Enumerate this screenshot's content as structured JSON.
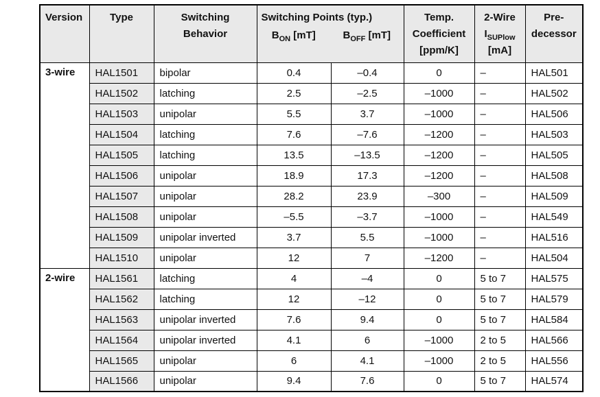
{
  "table": {
    "header": {
      "version_label": "Version",
      "type_label": "Type",
      "behavior_line1": "Switching",
      "behavior_line2": "Behavior",
      "points_label": "Switching Points (typ.)",
      "bon_base": "B",
      "bon_sub": "ON",
      "bon_unit": "[mT]",
      "boff_base": "B",
      "boff_sub": "OFF",
      "boff_unit": "[mT]",
      "temp_line1": "Temp.",
      "temp_line2": "Coefficient",
      "temp_line3": "[ppm/K]",
      "twowire_line1": "2-Wire",
      "isup_base": "I",
      "isup_sub": "SUPlow",
      "isup_unit": "[mA]",
      "pred_line1": "Pre-",
      "pred_line2": "decessor"
    },
    "colors": {
      "header_bg": "#e9e9e9",
      "type_cell_bg": "#e9e9e9",
      "border": "#000000",
      "text": "#111111"
    },
    "groups": [
      {
        "version": "3-wire",
        "rows": [
          {
            "type": "HAL1501",
            "behavior": "bipolar",
            "b_on": "0.4",
            "b_off": "–0.4",
            "temp_coeff": "0",
            "i_sup": "–",
            "predecessor": "HAL501"
          },
          {
            "type": "HAL1502",
            "behavior": "latching",
            "b_on": "2.5",
            "b_off": "–2.5",
            "temp_coeff": "–1000",
            "i_sup": "–",
            "predecessor": "HAL502"
          },
          {
            "type": "HAL1503",
            "behavior": "unipolar",
            "b_on": "5.5",
            "b_off": "3.7",
            "temp_coeff": "–1000",
            "i_sup": "–",
            "predecessor": "HAL506"
          },
          {
            "type": "HAL1504",
            "behavior": "latching",
            "b_on": "7.6",
            "b_off": "–7.6",
            "temp_coeff": "–1200",
            "i_sup": "–",
            "predecessor": "HAL503"
          },
          {
            "type": "HAL1505",
            "behavior": "latching",
            "b_on": "13.5",
            "b_off": "–13.5",
            "temp_coeff": "–1200",
            "i_sup": "–",
            "predecessor": "HAL505"
          },
          {
            "type": "HAL1506",
            "behavior": "unipolar",
            "b_on": "18.9",
            "b_off": "17.3",
            "temp_coeff": "–1200",
            "i_sup": "–",
            "predecessor": "HAL508"
          },
          {
            "type": "HAL1507",
            "behavior": "unipolar",
            "b_on": "28.2",
            "b_off": "23.9",
            "temp_coeff": "–300",
            "i_sup": "–",
            "predecessor": "HAL509"
          },
          {
            "type": "HAL1508",
            "behavior": "unipolar",
            "b_on": "–5.5",
            "b_off": "–3.7",
            "temp_coeff": "–1000",
            "i_sup": "–",
            "predecessor": "HAL549"
          },
          {
            "type": "HAL1509",
            "behavior": "unipolar inverted",
            "b_on": "3.7",
            "b_off": "5.5",
            "temp_coeff": "–1000",
            "i_sup": "–",
            "predecessor": "HAL516"
          },
          {
            "type": "HAL1510",
            "behavior": "unipolar",
            "b_on": "12",
            "b_off": "7",
            "temp_coeff": "–1200",
            "i_sup": "–",
            "predecessor": "HAL504"
          }
        ]
      },
      {
        "version": "2-wire",
        "rows": [
          {
            "type": "HAL1561",
            "behavior": "latching",
            "b_on": "4",
            "b_off": "–4",
            "temp_coeff": "0",
            "i_sup": "5 to 7",
            "predecessor": "HAL575"
          },
          {
            "type": "HAL1562",
            "behavior": "latching",
            "b_on": "12",
            "b_off": "–12",
            "temp_coeff": "0",
            "i_sup": "5 to 7",
            "predecessor": "HAL579"
          },
          {
            "type": "HAL1563",
            "behavior": "unipolar inverted",
            "b_on": "7.6",
            "b_off": "9.4",
            "temp_coeff": "0",
            "i_sup": "5 to 7",
            "predecessor": "HAL584"
          },
          {
            "type": "HAL1564",
            "behavior": "unipolar inverted",
            "b_on": "4.1",
            "b_off": "6",
            "temp_coeff": "–1000",
            "i_sup": "2 to 5",
            "predecessor": "HAL566"
          },
          {
            "type": "HAL1565",
            "behavior": "unipolar",
            "b_on": "6",
            "b_off": "4.1",
            "temp_coeff": "–1000",
            "i_sup": "2 to 5",
            "predecessor": "HAL556"
          },
          {
            "type": "HAL1566",
            "behavior": "unipolar",
            "b_on": "9.4",
            "b_off": "7.6",
            "temp_coeff": "0",
            "i_sup": "5 to 7",
            "predecessor": "HAL574"
          }
        ]
      }
    ]
  }
}
